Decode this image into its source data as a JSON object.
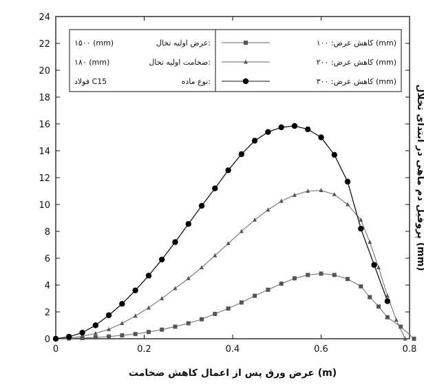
{
  "chart_data": {
    "type": "line",
    "xlabel": "عرض ورق پس از اعمال کاهش ضخامت (m)",
    "ylabel": "پروفیل دم ماهی در ابتدای تخلال (mm)",
    "xlim": [
      0,
      0.8
    ],
    "ylim": [
      0,
      24
    ],
    "x_ticks": [
      "0",
      "0.2",
      "0.4",
      "0.6",
      "0.8"
    ],
    "y_ticks": [
      "0",
      "2",
      "4",
      "6",
      "8",
      "10",
      "12",
      "14",
      "16",
      "18",
      "20",
      "22",
      "24"
    ],
    "grid": false,
    "legend_position": "top-right",
    "info_box": {
      "lines": [
        {
          "value": "۱۵۰۰ (mm)",
          "label": "عرض اولیه تخال:"
        },
        {
          "value": "۱۸۰ (mm)",
          "label": "ضخامت اولیه تخال:"
        },
        {
          "value": "فولاد C15",
          "label": "نوع ماده:"
        }
      ]
    },
    "series": [
      {
        "name": "کاهش عرض: ۱۰۰ (mm)",
        "marker": "square",
        "points": [
          [
            0.0,
            0.0
          ],
          [
            0.03,
            0.02
          ],
          [
            0.06,
            0.05
          ],
          [
            0.09,
            0.1
          ],
          [
            0.12,
            0.17
          ],
          [
            0.15,
            0.25
          ],
          [
            0.18,
            0.35
          ],
          [
            0.21,
            0.5
          ],
          [
            0.24,
            0.68
          ],
          [
            0.27,
            0.9
          ],
          [
            0.3,
            1.15
          ],
          [
            0.33,
            1.45
          ],
          [
            0.36,
            1.85
          ],
          [
            0.39,
            2.25
          ],
          [
            0.42,
            2.7
          ],
          [
            0.45,
            3.2
          ],
          [
            0.48,
            3.65
          ],
          [
            0.51,
            4.1
          ],
          [
            0.54,
            4.5
          ],
          [
            0.57,
            4.75
          ],
          [
            0.6,
            4.85
          ],
          [
            0.63,
            4.75
          ],
          [
            0.66,
            4.45
          ],
          [
            0.69,
            3.9
          ],
          [
            0.71,
            3.1
          ],
          [
            0.73,
            2.4
          ],
          [
            0.75,
            1.6
          ],
          [
            0.78,
            0.9
          ],
          [
            0.81,
            0.0
          ]
        ]
      },
      {
        "name": "کاهش عرض: ۲۰۰ (mm)",
        "marker": "triangle",
        "points": [
          [
            0.0,
            0.0
          ],
          [
            0.03,
            0.05
          ],
          [
            0.06,
            0.18
          ],
          [
            0.09,
            0.4
          ],
          [
            0.12,
            0.7
          ],
          [
            0.15,
            1.15
          ],
          [
            0.18,
            1.7
          ],
          [
            0.21,
            2.3
          ],
          [
            0.24,
            3.0
          ],
          [
            0.27,
            3.75
          ],
          [
            0.3,
            4.5
          ],
          [
            0.33,
            5.3
          ],
          [
            0.36,
            6.2
          ],
          [
            0.39,
            7.1
          ],
          [
            0.42,
            8.0
          ],
          [
            0.45,
            8.85
          ],
          [
            0.48,
            9.6
          ],
          [
            0.51,
            10.25
          ],
          [
            0.54,
            10.7
          ],
          [
            0.57,
            11.0
          ],
          [
            0.6,
            11.05
          ],
          [
            0.63,
            10.75
          ],
          [
            0.66,
            10.0
          ],
          [
            0.69,
            8.85
          ],
          [
            0.71,
            7.2
          ],
          [
            0.73,
            5.3
          ],
          [
            0.75,
            3.2
          ],
          [
            0.77,
            1.4
          ],
          [
            0.79,
            0.0
          ]
        ]
      },
      {
        "name": "کاهش عرض: ۳۰۰ (mm)",
        "marker": "circle",
        "points": [
          [
            0.0,
            0.0
          ],
          [
            0.03,
            0.15
          ],
          [
            0.06,
            0.45
          ],
          [
            0.09,
            1.0
          ],
          [
            0.12,
            1.75
          ],
          [
            0.15,
            2.6
          ],
          [
            0.18,
            3.6
          ],
          [
            0.21,
            4.7
          ],
          [
            0.24,
            5.9
          ],
          [
            0.27,
            7.2
          ],
          [
            0.3,
            8.55
          ],
          [
            0.33,
            9.9
          ],
          [
            0.36,
            11.2
          ],
          [
            0.39,
            12.55
          ],
          [
            0.42,
            13.75
          ],
          [
            0.45,
            14.75
          ],
          [
            0.48,
            15.4
          ],
          [
            0.51,
            15.75
          ],
          [
            0.54,
            15.85
          ],
          [
            0.57,
            15.6
          ],
          [
            0.6,
            15.0
          ],
          [
            0.63,
            13.7
          ],
          [
            0.66,
            11.7
          ],
          [
            0.69,
            8.2
          ],
          [
            0.72,
            5.5
          ],
          [
            0.75,
            2.8
          ]
        ]
      }
    ]
  }
}
